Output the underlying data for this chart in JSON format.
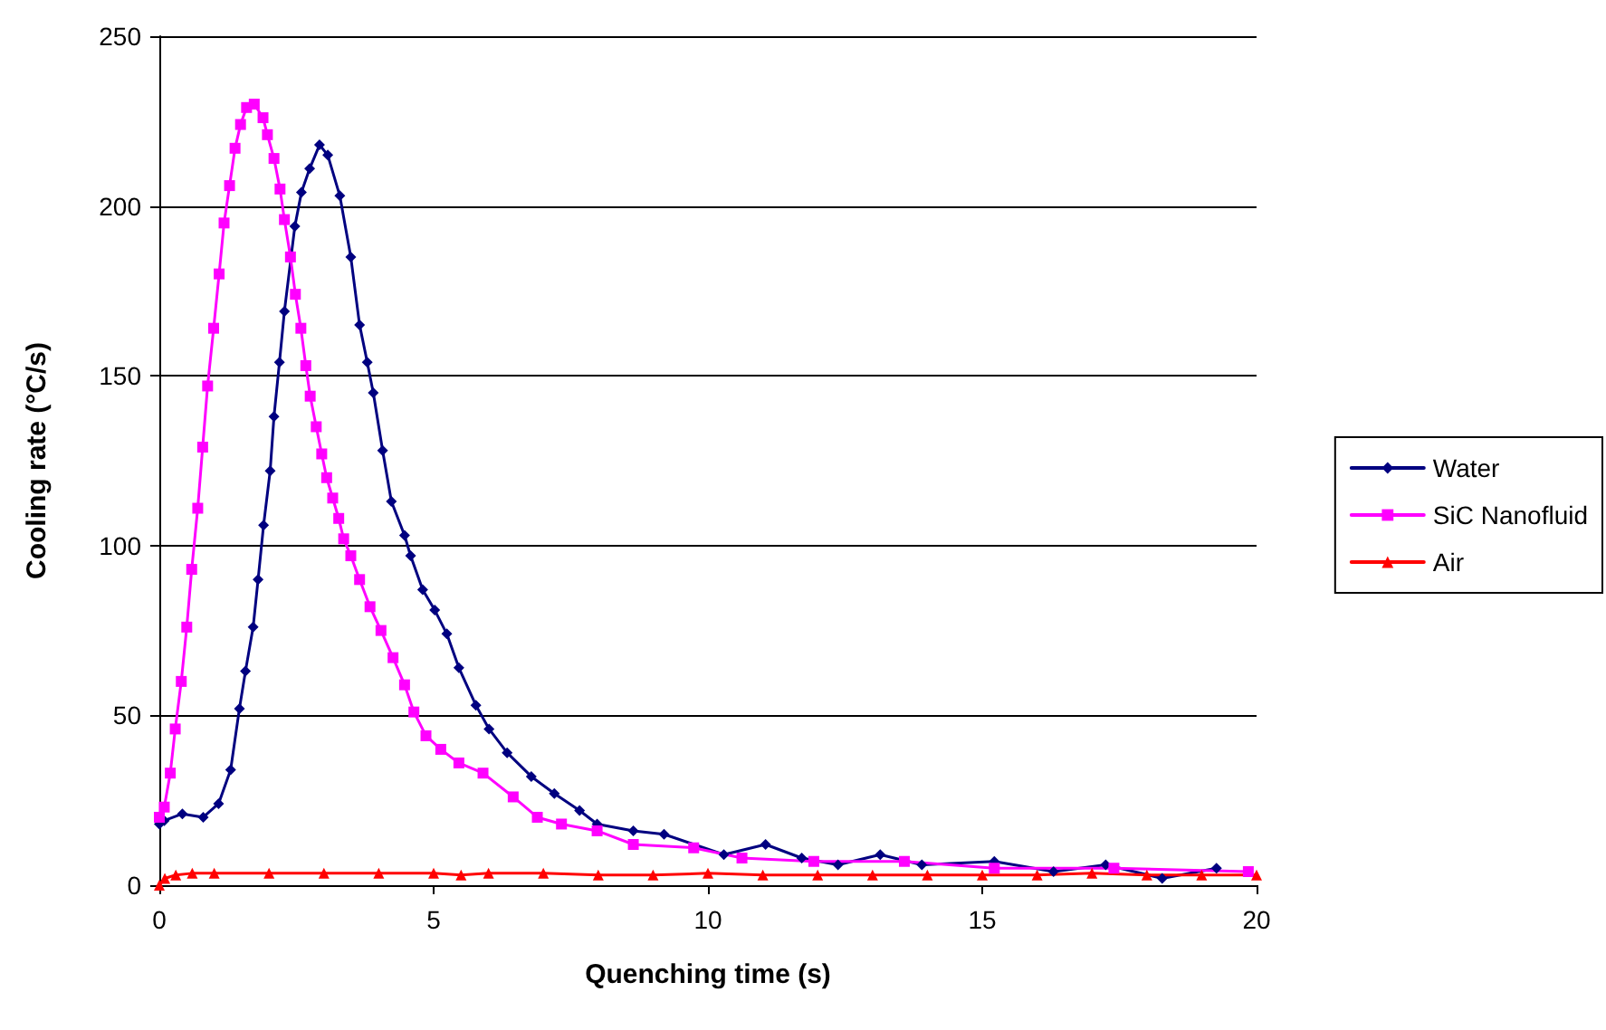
{
  "chart_data": {
    "type": "line",
    "xlabel": "Quenching time (s)",
    "ylabel": "Cooling rate (°C/s)",
    "xlim": [
      0,
      20
    ],
    "xticks": [
      0,
      5,
      10,
      15,
      20
    ],
    "ylim": [
      0,
      250
    ],
    "yticks": [
      0,
      50,
      100,
      150,
      200,
      250
    ],
    "grid": "y",
    "legend": "right",
    "line_style": "solid",
    "series": [
      {
        "name": "Water",
        "color": "#000080",
        "marker": "diamond",
        "x": [
          0,
          0.09,
          0.42,
          0.8,
          1.08,
          1.3,
          1.46,
          1.57,
          1.71,
          1.8,
          1.9,
          2.02,
          2.09,
          2.19,
          2.28,
          2.47,
          2.59,
          2.74,
          2.92,
          3.07,
          3.29,
          3.49,
          3.65,
          3.79,
          3.9,
          4.07,
          4.23,
          4.47,
          4.58,
          4.8,
          5.02,
          5.24,
          5.46,
          5.77,
          6.01,
          6.34,
          6.78,
          7.2,
          7.66,
          7.98,
          8.64,
          9.2,
          10.29,
          11.05,
          11.71,
          12.37,
          13.14,
          13.9,
          15.22,
          16.3,
          17.25,
          18.28,
          19.27
        ],
        "values": [
          18,
          19,
          21,
          20,
          24,
          34,
          52,
          63,
          76,
          90,
          106,
          122,
          138,
          154,
          169,
          194,
          204,
          211,
          218,
          215,
          203,
          185,
          165,
          154,
          145,
          128,
          113,
          103,
          97,
          87,
          81,
          74,
          64,
          53,
          46,
          39,
          32,
          27,
          22,
          18,
          16,
          15,
          9,
          12,
          8,
          6,
          9,
          6,
          7,
          4,
          6,
          2,
          5
        ]
      },
      {
        "name": "SiC Nanofluid",
        "color": "#ff00ff",
        "marker": "square",
        "x": [
          0,
          0.09,
          0.2,
          0.29,
          0.4,
          0.5,
          0.59,
          0.7,
          0.79,
          0.88,
          0.99,
          1.09,
          1.18,
          1.28,
          1.38,
          1.48,
          1.59,
          1.73,
          1.89,
          1.97,
          2.09,
          2.2,
          2.28,
          2.39,
          2.48,
          2.58,
          2.67,
          2.75,
          2.86,
          2.96,
          3.05,
          3.16,
          3.27,
          3.36,
          3.49,
          3.65,
          3.84,
          4.04,
          4.26,
          4.47,
          4.64,
          4.86,
          5.13,
          5.46,
          5.9,
          6.45,
          6.89,
          7.33,
          7.98,
          8.64,
          9.74,
          10.62,
          11.93,
          13.58,
          15.22,
          17.4,
          19.85
        ],
        "values": [
          20,
          23,
          33,
          46,
          60,
          76,
          93,
          111,
          129,
          147,
          164,
          180,
          195,
          206,
          217,
          224,
          229,
          230,
          226,
          221,
          214,
          205,
          196,
          185,
          174,
          164,
          153,
          144,
          135,
          127,
          120,
          114,
          108,
          102,
          97,
          90,
          82,
          75,
          67,
          59,
          51,
          44,
          40,
          36,
          33,
          26,
          20,
          18,
          16,
          12,
          11,
          8,
          7,
          7,
          5,
          5,
          4
        ]
      },
      {
        "name": "Air",
        "color": "#ff0000",
        "marker": "triangle",
        "x": [
          0,
          0.1,
          0.3,
          0.6,
          1,
          2,
          3,
          4,
          5,
          5.5,
          6,
          7,
          8,
          9,
          10,
          11,
          12,
          13,
          14,
          15,
          16,
          17,
          18,
          19,
          20
        ],
        "values": [
          0,
          2,
          3,
          3.5,
          3.5,
          3.5,
          3.5,
          3.5,
          3.5,
          3,
          3.5,
          3.5,
          3,
          3,
          3.5,
          3,
          3,
          3,
          3,
          3,
          3,
          3.5,
          3,
          3,
          3
        ]
      }
    ]
  }
}
